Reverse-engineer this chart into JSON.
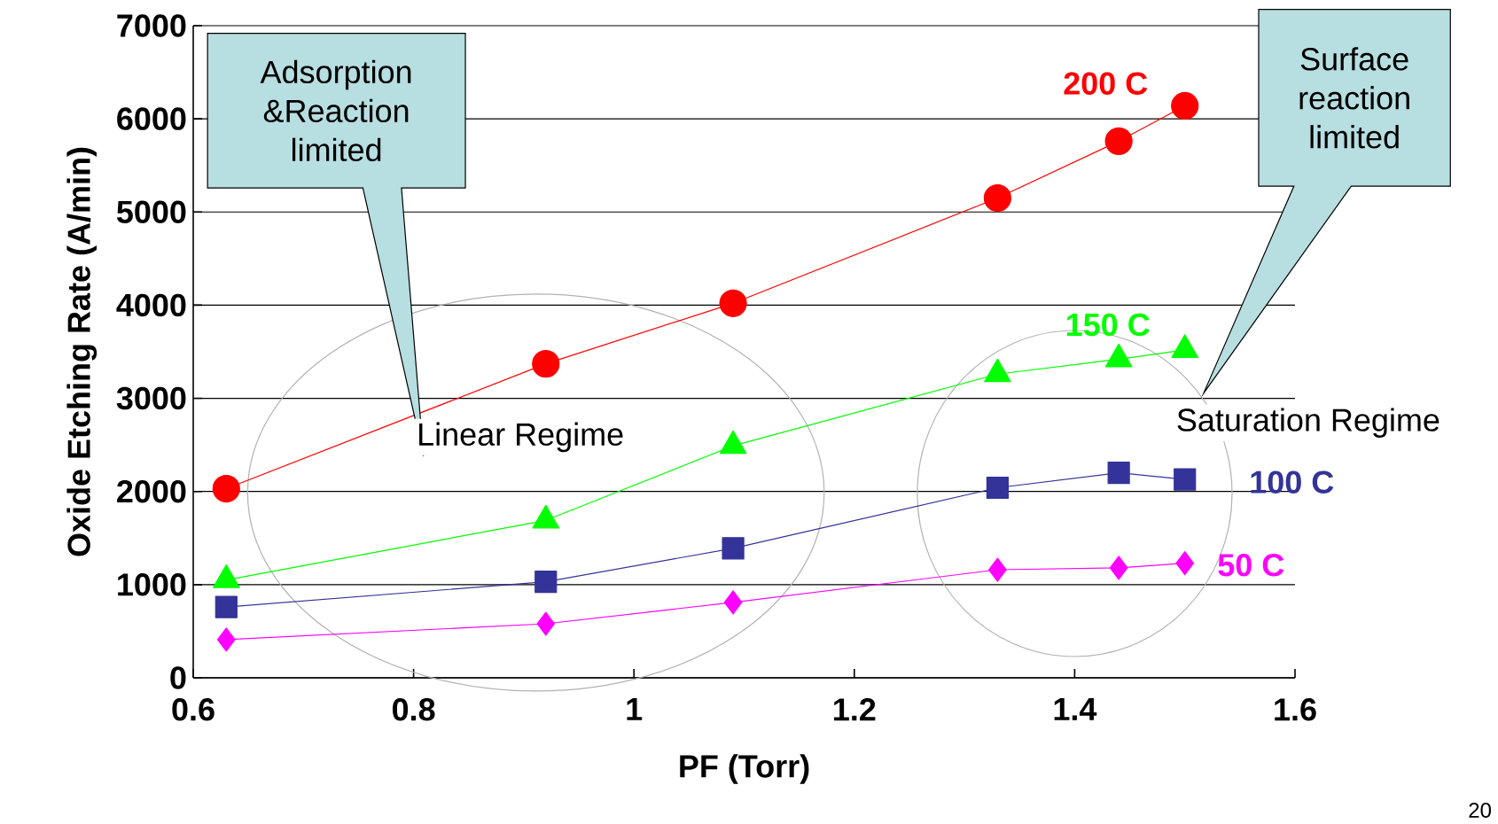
{
  "chart_data": {
    "type": "line",
    "xlabel": "PF (Torr)",
    "ylabel": "Oxide Etching Rate (A/min)",
    "x": [
      0.63,
      0.92,
      1.09,
      1.33,
      1.44,
      1.5
    ],
    "series": [
      {
        "name": "200 C",
        "color": "#ff0000",
        "marker": "circle",
        "values": [
          2030,
          3370,
          4020,
          5150,
          5760,
          6140
        ]
      },
      {
        "name": "150 C",
        "color": "#00ff00",
        "marker": "triangle",
        "values": [
          1050,
          1690,
          2490,
          3260,
          3420,
          3520
        ]
      },
      {
        "name": "100 C",
        "color": "#333399",
        "marker": "square",
        "values": [
          760,
          1030,
          1390,
          2040,
          2200,
          2130
        ]
      },
      {
        "name": "50 C",
        "color": "#ff00ff",
        "marker": "diamond",
        "values": [
          410,
          580,
          810,
          1160,
          1180,
          1230
        ]
      }
    ],
    "xlim": [
      0.6,
      1.6
    ],
    "ylim": [
      0,
      7000
    ],
    "xticks": [
      0.6,
      0.8,
      1,
      1.2,
      1.4,
      1.6
    ],
    "yticks": [
      0,
      1000,
      2000,
      3000,
      4000,
      5000,
      6000,
      7000
    ],
    "grid": "y",
    "annotations": [
      "Adsorption &Reaction limited",
      "Surface reaction limited",
      "Linear Regime",
      "Saturation Regime",
      "20"
    ]
  }
}
